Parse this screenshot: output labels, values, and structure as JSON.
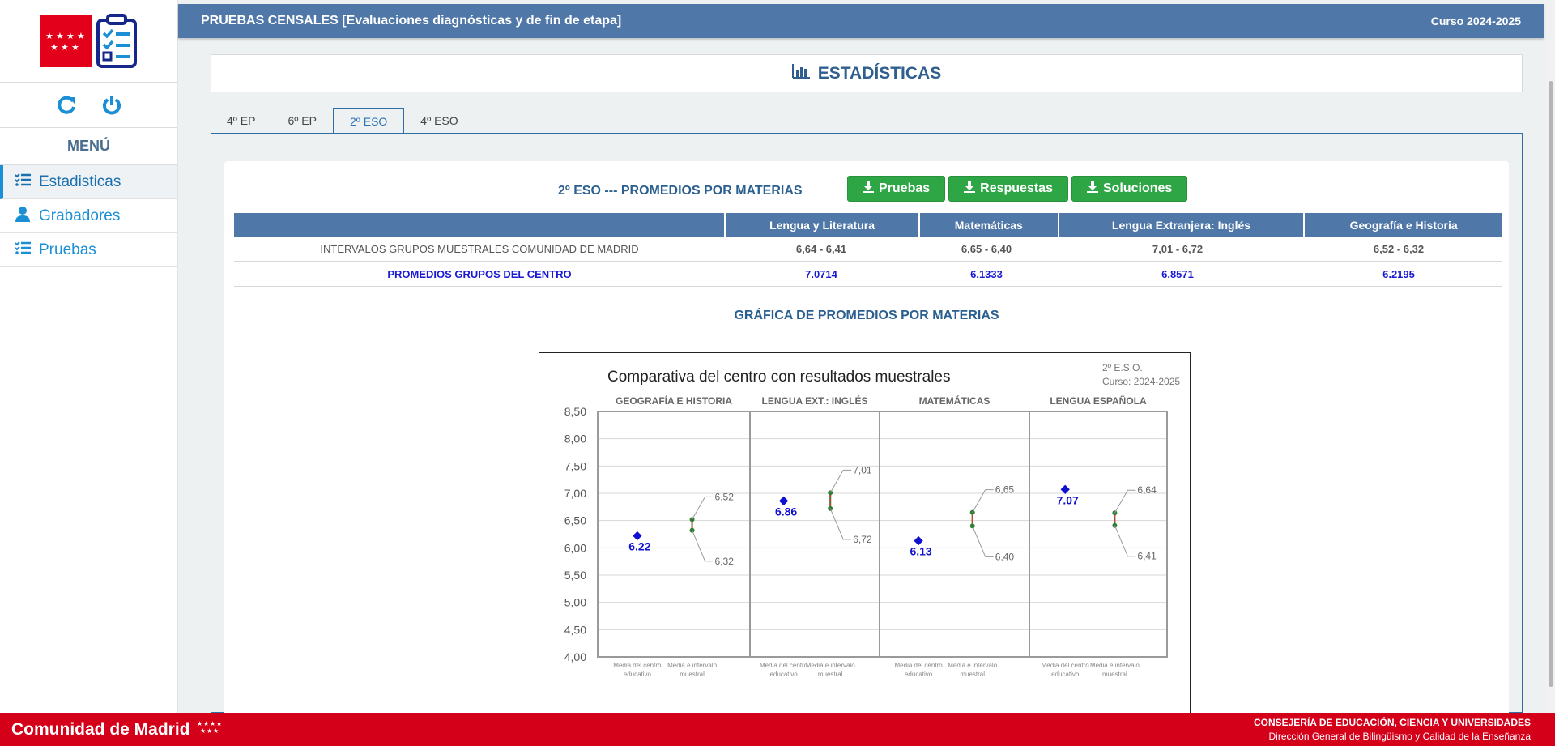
{
  "header": {
    "title": "PRUEBAS CENSALES [Evaluaciones diagnósticas y de fin de etapa]",
    "course": "Curso 2024-2025"
  },
  "sidebar": {
    "menu_title": "MENÚ",
    "items": [
      {
        "label": "Estadisticas",
        "icon": "list-check-icon",
        "active": true
      },
      {
        "label": "Grabadores",
        "icon": "user-icon",
        "active": false
      },
      {
        "label": "Pruebas",
        "icon": "list-check-icon",
        "active": false
      }
    ],
    "actions": [
      "refresh-icon",
      "power-icon"
    ]
  },
  "stats": {
    "title": "ESTADÍSTICAS",
    "icon": "bar-chart-icon"
  },
  "tabs": [
    {
      "label": "4º EP",
      "active": false
    },
    {
      "label": "6º EP",
      "active": false
    },
    {
      "label": "2º ESO",
      "active": true
    },
    {
      "label": "4º ESO",
      "active": false
    }
  ],
  "table": {
    "title": "2º ESO --- PROMEDIOS POR MATERIAS",
    "buttons": [
      "Pruebas",
      "Respuestas",
      "Soluciones"
    ],
    "columns": [
      "",
      "Lengua y Literatura",
      "Matemáticas",
      "Lengua Extranjera: Inglés",
      "Geografía e Historia"
    ],
    "rows": [
      {
        "label": "INTERVALOS GRUPOS MUESTRALES COMUNIDAD DE MADRID",
        "values": [
          "6,64 - 6,41",
          "6,65 - 6,40",
          "7,01 - 6,72",
          "6,52 - 6,32"
        ]
      },
      {
        "label": "PROMEDIOS GRUPOS DEL CENTRO",
        "values": [
          "7.0714",
          "6.1333",
          "6.8571",
          "6.2195"
        ]
      }
    ]
  },
  "chart_heading": "GRÁFICA DE PROMEDIOS POR MATERIAS",
  "chart_data": {
    "type": "scatter",
    "title": "Comparativa del centro con resultados muestrales",
    "subtitle_lines": [
      "2º E.S.O.",
      "Curso: 2024-2025"
    ],
    "ylim": [
      4.0,
      8.5
    ],
    "yticks": [
      "8,50",
      "8,00",
      "7,50",
      "7,00",
      "6,50",
      "6,00",
      "5,50",
      "5,00",
      "4,50",
      "4,00"
    ],
    "panels": [
      {
        "name": "GEOGRAFÍA E HISTORIA",
        "centro": 6.22,
        "centro_label": "6.22",
        "high": 6.52,
        "high_label": "6,52",
        "low": 6.32,
        "low_label": "6,32"
      },
      {
        "name": "LENGUA EXT.: INGLÉS",
        "centro": 6.86,
        "centro_label": "6.86",
        "high": 7.01,
        "high_label": "7,01",
        "low": 6.72,
        "low_label": "6,72"
      },
      {
        "name": "MATEMÁTICAS",
        "centro": 6.13,
        "centro_label": "6.13",
        "high": 6.65,
        "high_label": "6,65",
        "low": 6.4,
        "low_label": "6,40"
      },
      {
        "name": "LENGUA ESPAÑOLA",
        "centro": 7.07,
        "centro_label": "7.07",
        "high": 6.64,
        "high_label": "6,64",
        "low": 6.41,
        "low_label": "6,41"
      }
    ],
    "x_labels": [
      "Media del centro educativo",
      "Media e intervalo muestral"
    ],
    "colors": {
      "centro": "#1010d0",
      "interval": "#2e7d32",
      "mean": "#e53935"
    }
  },
  "footer": {
    "brand": "Comunidad de Madrid",
    "dept": "CONSEJERÍA DE EDUCACIÓN, CIENCIA Y UNIVERSIDADES",
    "subdept": "Dirección General de Bilingüismo y Calidad de la Enseñanza"
  }
}
